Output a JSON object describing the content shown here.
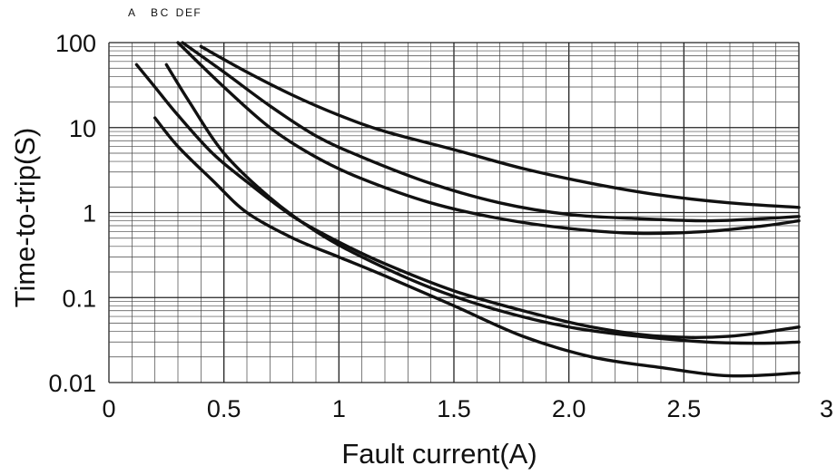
{
  "chart_data": {
    "type": "line",
    "title": "",
    "xlabel": "Fault current(A)",
    "ylabel": "Time-to-trip(S)",
    "xlim": [
      0,
      3
    ],
    "ylim": [
      0.01,
      100
    ],
    "yscale": "log",
    "grid": true,
    "x_tick_labels": [
      {
        "value": 0,
        "label": "0"
      },
      {
        "value": 0.5,
        "label": "0.5"
      },
      {
        "value": 1,
        "label": "1"
      },
      {
        "value": 1.5,
        "label": "1.5"
      },
      {
        "value": 2.0,
        "label": "2.0"
      },
      {
        "value": 2.5,
        "label": "2.5"
      },
      {
        "value": 3,
        "label": "3"
      }
    ],
    "y_tick_labels": [
      {
        "value": 100,
        "label": "100"
      },
      {
        "value": 10,
        "label": "10"
      },
      {
        "value": 1,
        "label": "1"
      },
      {
        "value": 0.1,
        "label": "0.1"
      },
      {
        "value": 0.01,
        "label": "0.01"
      }
    ],
    "curve_labels": [
      "A",
      "B",
      "C",
      "D",
      "E",
      "F"
    ],
    "series": [
      {
        "name": "A",
        "x": [
          0.12,
          0.2,
          0.3,
          0.45,
          0.6,
          0.8,
          1.0,
          1.2,
          1.5,
          1.8,
          2.1,
          2.4,
          2.7,
          3.0
        ],
        "y": [
          55,
          30,
          14,
          5,
          2.3,
          0.9,
          0.45,
          0.25,
          0.12,
          0.07,
          0.045,
          0.035,
          0.035,
          0.045
        ]
      },
      {
        "name": "B",
        "x": [
          0.2,
          0.3,
          0.45,
          0.6,
          0.8,
          1.0,
          1.2,
          1.5,
          1.8,
          2.1,
          2.4,
          2.7,
          3.0
        ],
        "y": [
          13,
          6,
          2.4,
          1.0,
          0.5,
          0.3,
          0.18,
          0.08,
          0.035,
          0.02,
          0.015,
          0.012,
          0.013
        ]
      },
      {
        "name": "C",
        "x": [
          0.25,
          0.35,
          0.5,
          0.7,
          0.9,
          1.1,
          1.4,
          1.7,
          2.0,
          2.3,
          2.6,
          2.85,
          3.0
        ],
        "y": [
          55,
          20,
          5,
          1.5,
          0.6,
          0.3,
          0.13,
          0.07,
          0.045,
          0.035,
          0.03,
          0.029,
          0.03
        ]
      },
      {
        "name": "D",
        "x": [
          0.3,
          0.5,
          0.7,
          0.9,
          1.1,
          1.4,
          1.7,
          2.0,
          2.3,
          2.6,
          2.85,
          3.0
        ],
        "y": [
          100,
          30,
          10,
          4.5,
          2.5,
          1.3,
          0.85,
          0.65,
          0.57,
          0.6,
          0.7,
          0.8
        ]
      },
      {
        "name": "E",
        "x": [
          0.32,
          0.5,
          0.7,
          0.9,
          1.1,
          1.4,
          1.7,
          2.0,
          2.3,
          2.6,
          2.85,
          3.0
        ],
        "y": [
          100,
          45,
          18,
          8,
          4.5,
          2.2,
          1.3,
          0.95,
          0.85,
          0.8,
          0.85,
          0.9
        ]
      },
      {
        "name": "F",
        "x": [
          0.4,
          0.6,
          0.8,
          1.0,
          1.2,
          1.5,
          1.8,
          2.1,
          2.4,
          2.7,
          3.0
        ],
        "y": [
          90,
          45,
          24,
          14,
          9,
          5.5,
          3.3,
          2.2,
          1.6,
          1.3,
          1.15
        ]
      }
    ]
  }
}
